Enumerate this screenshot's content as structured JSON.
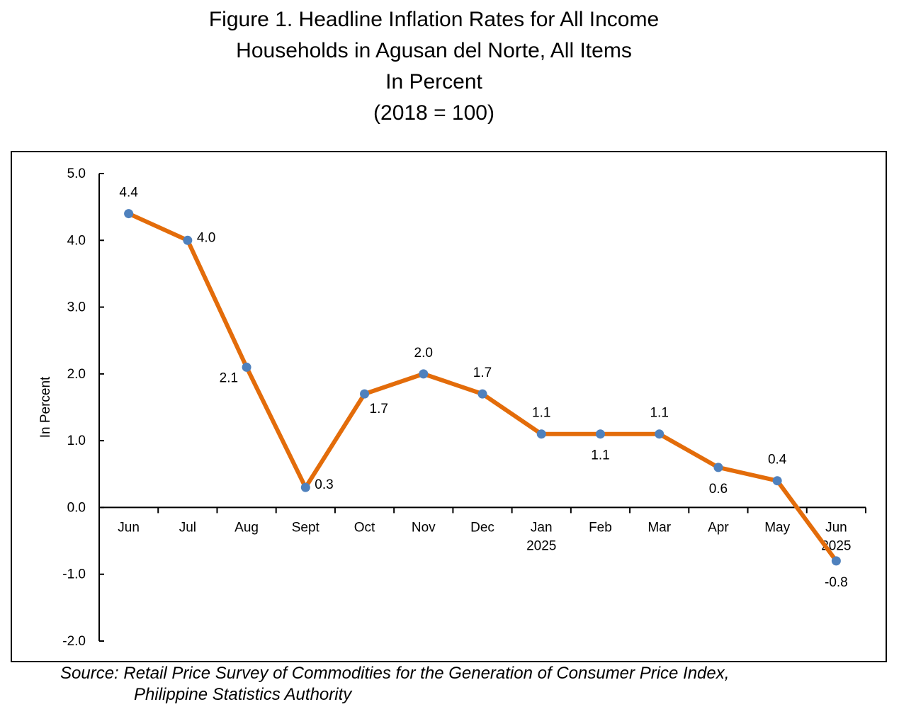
{
  "chart_data": {
    "type": "line",
    "title": [
      "Figure 1. Headline Inflation Rates for All Income",
      "Households in Agusan del Norte, All Items",
      "In Percent",
      "(2018 = 100)"
    ],
    "ylabel": "In  Percent",
    "ylim": [
      -2.0,
      5.0
    ],
    "yticks": [
      "5.0",
      "4.0",
      "3.0",
      "2.0",
      "1.0",
      "0.0",
      "-1.0",
      "-2.0"
    ],
    "categories": [
      [
        "Jun"
      ],
      [
        "Jul"
      ],
      [
        "Aug"
      ],
      [
        "Sept"
      ],
      [
        "Oct"
      ],
      [
        "Nov"
      ],
      [
        "Dec"
      ],
      [
        "Jan",
        "2025"
      ],
      [
        "Feb"
      ],
      [
        "Mar"
      ],
      [
        "Apr"
      ],
      [
        "May"
      ],
      [
        "Jun",
        "2025"
      ]
    ],
    "series": [
      {
        "values": [
          4.4,
          4.0,
          2.1,
          0.3,
          1.7,
          2.0,
          1.7,
          1.1,
          1.1,
          1.1,
          0.6,
          0.4,
          -0.8
        ],
        "labels": [
          "4.4",
          "4.0",
          "2.1",
          "0.3",
          "1.7",
          "2.0",
          "1.7",
          "1.1",
          "1.1",
          "1.1",
          "0.6",
          "0.4",
          "-0.8"
        ],
        "line_color": "#E36C0A",
        "marker_color": "#4F81BD"
      }
    ],
    "grid": false,
    "legend": "none"
  },
  "source": {
    "line1": "Source: Retail Price Survey of Commodities for the Generation of Consumer Price Index,",
    "line2": "Philippine Statistics Authority"
  }
}
